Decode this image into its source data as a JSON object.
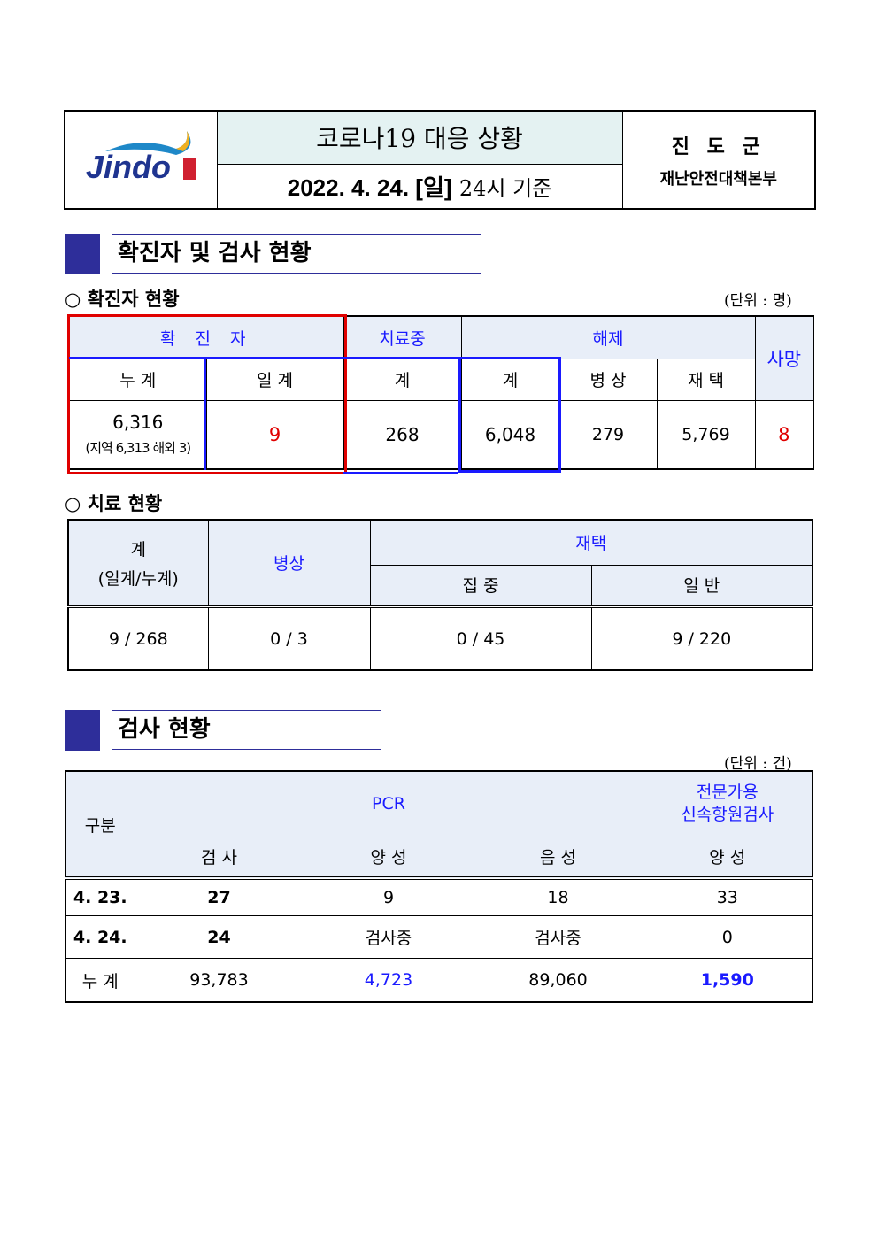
{
  "header": {
    "logo_text": "Jindo",
    "title": "코로나19 대응 상황",
    "date": "2022. 4. 24. [일]",
    "time": "24시 기준",
    "org_name": "진 도 군",
    "org_dept": "재난안전대책본부"
  },
  "section1": {
    "title": "확진자 및 검사 현황",
    "confirmed": {
      "heading": "○ 확진자 현황",
      "unit": "(단위 : 명)",
      "headers": {
        "confirmed": "확 진 자",
        "treating": "치료중",
        "released": "해제",
        "death": "사망",
        "cumulative": "누 계",
        "daily": "일 계",
        "treating_total": "계",
        "released_total": "계",
        "hospital": "병 상",
        "home": "재 택"
      },
      "values": {
        "cumulative": "6,316",
        "cumulative_detail": "(지역 6,313 해외 3)",
        "daily": "9",
        "treating": "268",
        "released_total": "6,048",
        "hospital": "279",
        "home": "5,769",
        "death": "8"
      }
    },
    "treatment": {
      "heading": "○ 치료 현황",
      "headers": {
        "total": "계",
        "total_sub": "(일계/누계)",
        "hospital": "병상",
        "home": "재택",
        "intensive": "집 중",
        "general": "일 반"
      },
      "values": {
        "total": "9 / 268",
        "hospital": "0 / 3",
        "intensive": "0 / 45",
        "general": "9 / 220"
      }
    }
  },
  "section2": {
    "title": "검사 현황",
    "unit": "(단위 : 건)",
    "headers": {
      "category": "구분",
      "pcr": "PCR",
      "rapid": "전문가용\n신속항원검사",
      "tests": "검 사",
      "positive": "양 성",
      "negative": "음 성",
      "rapid_positive": "양 성"
    },
    "rows": [
      {
        "label": "4. 23.",
        "tests": "27",
        "positive": "9",
        "negative": "18",
        "rapid": "33"
      },
      {
        "label": "4. 24.",
        "tests": "24",
        "positive": "검사중",
        "negative": "검사중",
        "rapid": "0"
      },
      {
        "label": "누 계",
        "tests": "93,783",
        "positive": "4,723",
        "negative": "89,060",
        "rapid": "1,590"
      }
    ]
  },
  "colors": {
    "accent": "#2e2e9a",
    "highlight_red": "#e00000",
    "highlight_blue": "#1a1aff",
    "header_bg": "#e8eef8"
  }
}
